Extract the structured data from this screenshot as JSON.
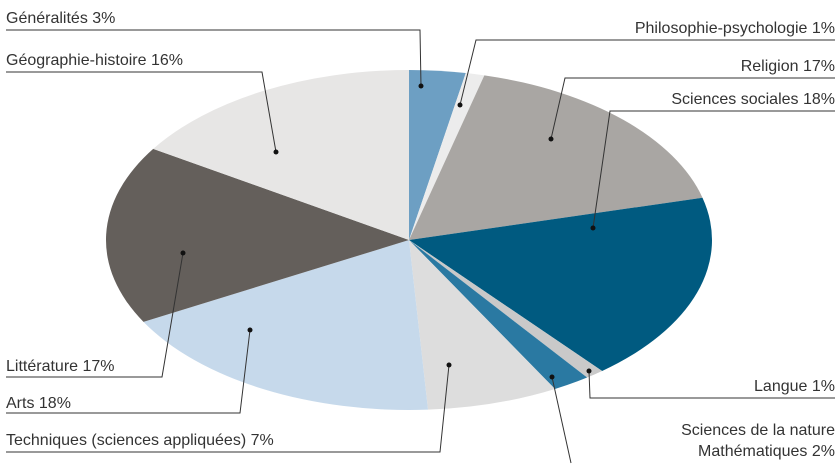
{
  "chart_data": {
    "type": "pie",
    "categories": [
      "Généralités",
      "Philosophie-psychologie",
      "Religion",
      "Sciences sociales",
      "Langue",
      "Sciences de la nature\nMathématiques",
      "Techniques (sciences appliquées)",
      "Arts",
      "Littérature",
      "Géographie-histoire"
    ],
    "values": [
      3,
      1,
      17,
      18,
      1,
      2,
      7,
      18,
      17,
      16
    ],
    "value_labels": [
      "3%",
      "1%",
      "17%",
      "18%",
      "1%",
      "2%",
      "7%",
      "18%",
      "17%",
      "16%"
    ],
    "colors": [
      "#6d9fc3",
      "#ececec",
      "#a9a6a3",
      "#005a80",
      "#c9c9c9",
      "#2a79a2",
      "#dddddd",
      "#c6d9eb",
      "#645f5b",
      "#e7e6e5"
    ]
  }
}
